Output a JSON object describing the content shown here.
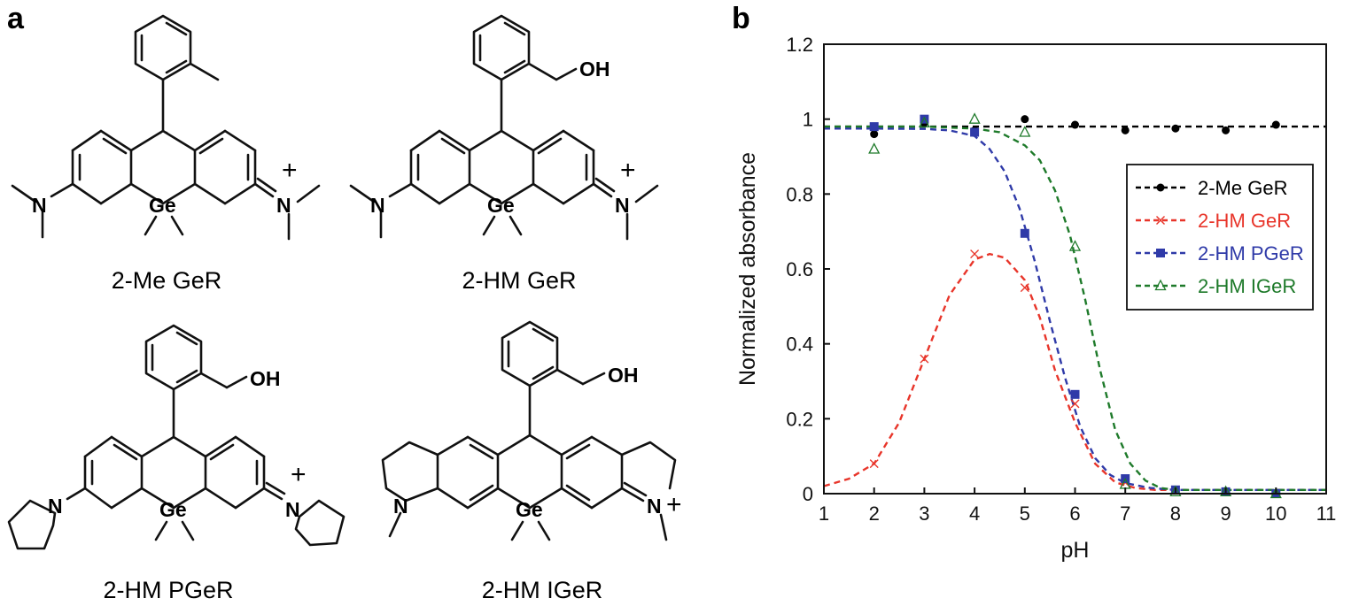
{
  "panels": {
    "a": "a",
    "b": "b"
  },
  "structures": [
    {
      "name": "2-Me GeR",
      "substituent": "",
      "ge": "Ge",
      "plus": "+",
      "n_left": "N",
      "n_right": "N"
    },
    {
      "name": "2-HM GeR",
      "substituent": "OH",
      "ge": "Ge",
      "plus": "+",
      "n_left": "N",
      "n_right": "N"
    },
    {
      "name": "2-HM PGeR",
      "substituent": "OH",
      "ge": "Ge",
      "plus": "+",
      "n_left": "N",
      "n_right": "N"
    },
    {
      "name": "2-HM IGeR",
      "substituent": "OH",
      "ge": "Ge",
      "plus": "+",
      "n_left": "N",
      "n_right": "N"
    }
  ],
  "chart_data": {
    "type": "scatter",
    "xlabel": "pH",
    "ylabel": "Normalized absorbance",
    "xlim": [
      1,
      11
    ],
    "ylim": [
      0,
      1.2
    ],
    "xticks": [
      1,
      2,
      3,
      4,
      5,
      6,
      7,
      8,
      9,
      10,
      11
    ],
    "yticks": [
      {
        "v": 0,
        "label": "0"
      },
      {
        "v": 0.2,
        "label": "0.2"
      },
      {
        "v": 0.4,
        "label": "0.4"
      },
      {
        "v": 0.6,
        "label": "0.6"
      },
      {
        "v": 0.8,
        "label": "0.8"
      },
      {
        "v": 1.0,
        "label": "1"
      },
      {
        "v": 1.2,
        "label": "1.2"
      }
    ],
    "legend_position": "right",
    "series": [
      {
        "name": "2-Me GeR",
        "color": "#000000",
        "marker": "circle",
        "points": [
          [
            2,
            0.96
          ],
          [
            3,
            0.99
          ],
          [
            4,
            0.97
          ],
          [
            5,
            1.0
          ],
          [
            6,
            0.985
          ],
          [
            7,
            0.97
          ],
          [
            8,
            0.975
          ],
          [
            9,
            0.97
          ],
          [
            10,
            0.985
          ]
        ],
        "fit": [
          [
            1,
            0.98
          ],
          [
            11,
            0.98
          ]
        ]
      },
      {
        "name": "2-HM GeR",
        "color": "#e8352a",
        "marker": "x",
        "points": [
          [
            2,
            0.08
          ],
          [
            3,
            0.36
          ],
          [
            4,
            0.64
          ],
          [
            5,
            0.55
          ],
          [
            6,
            0.24
          ],
          [
            7,
            0.03
          ],
          [
            8,
            0.01
          ]
        ],
        "fit": [
          [
            1,
            0.02
          ],
          [
            1.5,
            0.04
          ],
          [
            2,
            0.08
          ],
          [
            2.5,
            0.19
          ],
          [
            3,
            0.36
          ],
          [
            3.5,
            0.53
          ],
          [
            4,
            0.625
          ],
          [
            4.3,
            0.64
          ],
          [
            4.6,
            0.63
          ],
          [
            5,
            0.57
          ],
          [
            5.3,
            0.47
          ],
          [
            5.6,
            0.33
          ],
          [
            6,
            0.19
          ],
          [
            6.4,
            0.08
          ],
          [
            6.8,
            0.03
          ],
          [
            7.2,
            0.015
          ],
          [
            7.6,
            0.01
          ],
          [
            8,
            0.01
          ],
          [
            9,
            0.01
          ],
          [
            10,
            0.01
          ],
          [
            11,
            0.01
          ]
        ]
      },
      {
        "name": "2-HM PGeR",
        "color": "#2f3aa8",
        "marker": "square",
        "points": [
          [
            2,
            0.98
          ],
          [
            3,
            1.0
          ],
          [
            4,
            0.965
          ],
          [
            5,
            0.695
          ],
          [
            6,
            0.265
          ],
          [
            7,
            0.04
          ],
          [
            8,
            0.01
          ],
          [
            9,
            0.005
          ],
          [
            10,
            0.0
          ]
        ],
        "fit": [
          [
            1,
            0.975
          ],
          [
            2,
            0.975
          ],
          [
            3,
            0.974
          ],
          [
            3.5,
            0.97
          ],
          [
            4,
            0.955
          ],
          [
            4.3,
            0.92
          ],
          [
            4.6,
            0.86
          ],
          [
            4.9,
            0.76
          ],
          [
            5.2,
            0.62
          ],
          [
            5.5,
            0.46
          ],
          [
            5.8,
            0.31
          ],
          [
            6.1,
            0.18
          ],
          [
            6.4,
            0.095
          ],
          [
            6.7,
            0.05
          ],
          [
            7,
            0.028
          ],
          [
            7.5,
            0.015
          ],
          [
            8,
            0.01
          ],
          [
            9,
            0.01
          ],
          [
            10,
            0.01
          ],
          [
            11,
            0.01
          ]
        ]
      },
      {
        "name": "2-HM IGeR",
        "color": "#1e7a2a",
        "marker": "triangle",
        "points": [
          [
            2,
            0.92
          ],
          [
            3,
            0.99
          ],
          [
            4,
            1.0
          ],
          [
            5,
            0.965
          ],
          [
            6,
            0.66
          ],
          [
            7,
            0.025
          ],
          [
            8,
            0.005
          ],
          [
            9,
            0.005
          ],
          [
            10,
            0.0
          ]
        ],
        "fit": [
          [
            1,
            0.98
          ],
          [
            2,
            0.98
          ],
          [
            3,
            0.98
          ],
          [
            4,
            0.975
          ],
          [
            4.5,
            0.965
          ],
          [
            5,
            0.93
          ],
          [
            5.3,
            0.89
          ],
          [
            5.6,
            0.81
          ],
          [
            5.9,
            0.69
          ],
          [
            6.2,
            0.52
          ],
          [
            6.5,
            0.33
          ],
          [
            6.8,
            0.17
          ],
          [
            7.1,
            0.08
          ],
          [
            7.4,
            0.035
          ],
          [
            7.7,
            0.015
          ],
          [
            8,
            0.01
          ],
          [
            9,
            0.01
          ],
          [
            10,
            0.01
          ],
          [
            11,
            0.01
          ]
        ]
      }
    ]
  }
}
